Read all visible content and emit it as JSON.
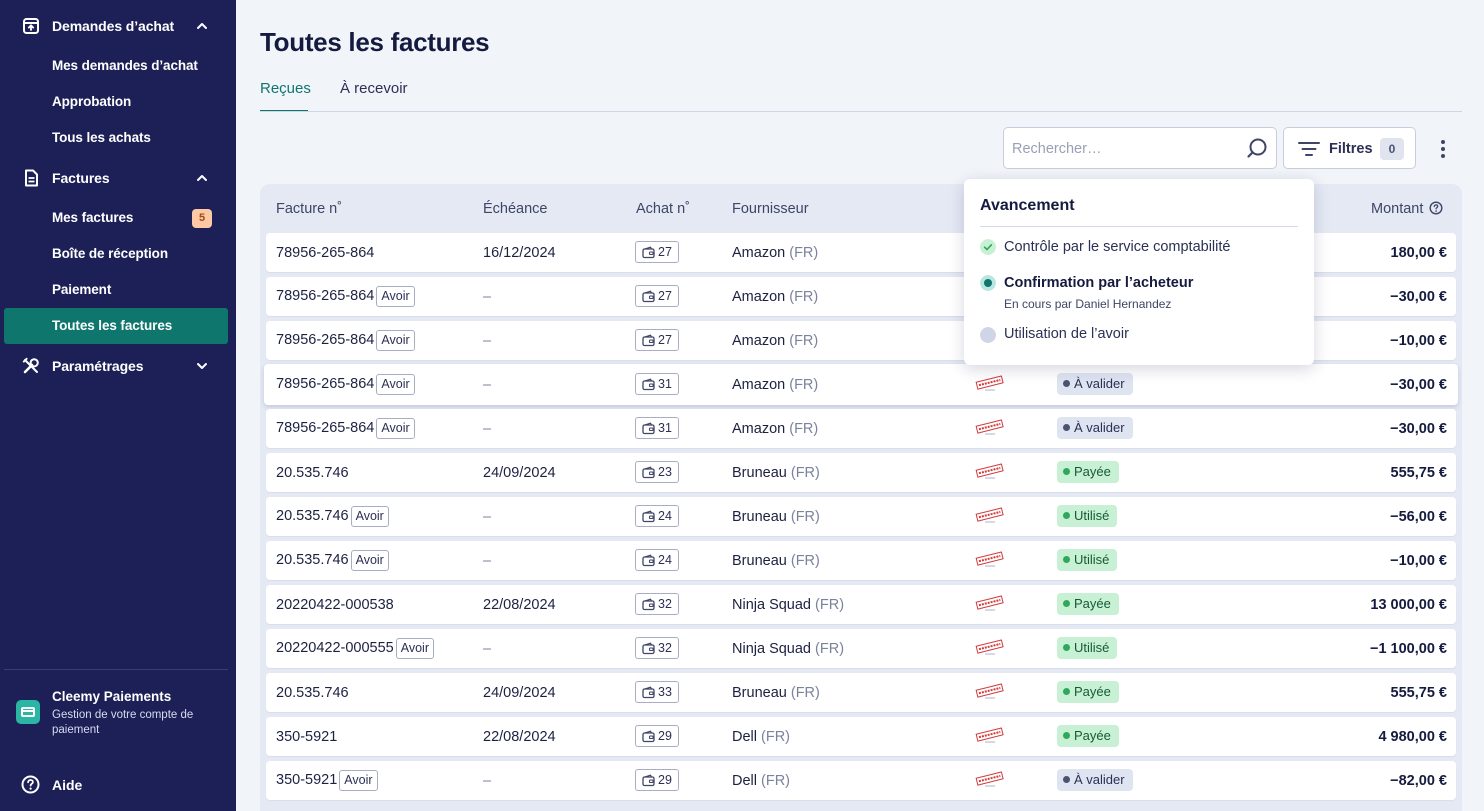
{
  "sidebar": {
    "groups": [
      {
        "label": "Demandes d’achat",
        "icon": "upload-box-icon",
        "expanded": true,
        "items": [
          {
            "label": "Mes demandes d’achat"
          },
          {
            "label": "Approbation"
          },
          {
            "label": "Tous les achats"
          }
        ]
      },
      {
        "label": "Factures",
        "icon": "document-icon",
        "expanded": true,
        "items": [
          {
            "label": "Mes factures",
            "badge": "5"
          },
          {
            "label": "Boîte de réception"
          },
          {
            "label": "Paiement"
          },
          {
            "label": "Toutes les factures",
            "active": true
          }
        ]
      },
      {
        "label": "Paramétrages",
        "icon": "tools-icon",
        "expanded": false,
        "items": []
      }
    ],
    "footer": {
      "account_title": "Cleemy Paiements",
      "account_subtitle": "Gestion de votre compte de paiement",
      "help_label": "Aide"
    }
  },
  "main": {
    "title": "Toutes les factures",
    "tabs": [
      {
        "label": "Reçues",
        "active": true
      },
      {
        "label": "À recevoir",
        "active": false
      }
    ],
    "search": {
      "placeholder": "Rechercher…",
      "value": ""
    },
    "filters": {
      "label": "Filtres",
      "count": "0"
    }
  },
  "table": {
    "columns": {
      "invoice": "Facture n˚",
      "due": "Échéance",
      "purchase": "Achat n˚",
      "supplier": "Fournisseur",
      "amount": "Montant"
    },
    "avoir_label": "Avoir",
    "rows": [
      {
        "invoice": "78956-265-864",
        "avoir": false,
        "due": "16/12/2024",
        "purchase": "27",
        "supplier": "Amazon",
        "country": "(FR)",
        "status": "",
        "status_type": "",
        "amount": "180,00 €"
      },
      {
        "invoice": "78956-265-864",
        "avoir": true,
        "due": "–",
        "purchase": "27",
        "supplier": "Amazon",
        "country": "(FR)",
        "status": "",
        "status_type": "",
        "amount": "−30,00 €"
      },
      {
        "invoice": "78956-265-864",
        "avoir": true,
        "due": "–",
        "purchase": "27",
        "supplier": "Amazon",
        "country": "(FR)",
        "status": "",
        "status_type": "",
        "amount": "−10,00 €"
      },
      {
        "invoice": "78956-265-864",
        "avoir": true,
        "due": "–",
        "purchase": "31",
        "supplier": "Amazon",
        "country": "(FR)",
        "status": "À valider",
        "status_type": "pending",
        "amount": "−30,00 €"
      },
      {
        "invoice": "78956-265-864",
        "avoir": true,
        "due": "–",
        "purchase": "31",
        "supplier": "Amazon",
        "country": "(FR)",
        "status": "À valider",
        "status_type": "pending",
        "amount": "−30,00 €"
      },
      {
        "invoice": "20.535.746",
        "avoir": false,
        "due": "24/09/2024",
        "purchase": "23",
        "supplier": "Bruneau",
        "country": "(FR)",
        "status": "Payée",
        "status_type": "paid",
        "amount": "555,75 €"
      },
      {
        "invoice": "20.535.746",
        "avoir": true,
        "due": "–",
        "purchase": "24",
        "supplier": "Bruneau",
        "country": "(FR)",
        "status": "Utilisé",
        "status_type": "paid",
        "amount": "−56,00 €"
      },
      {
        "invoice": "20.535.746",
        "avoir": true,
        "due": "–",
        "purchase": "24",
        "supplier": "Bruneau",
        "country": "(FR)",
        "status": "Utilisé",
        "status_type": "paid",
        "amount": "−10,00 €"
      },
      {
        "invoice": "20220422-000538",
        "avoir": false,
        "due": "22/08/2024",
        "purchase": "32",
        "supplier": "Ninja Squad",
        "country": "(FR)",
        "status": "Payée",
        "status_type": "paid",
        "amount": "13 000,00 €"
      },
      {
        "invoice": "20220422-000555",
        "avoir": true,
        "due": "–",
        "purchase": "32",
        "supplier": "Ninja Squad",
        "country": "(FR)",
        "status": "Utilisé",
        "status_type": "paid",
        "amount": "−1 100,00 €"
      },
      {
        "invoice": "20.535.746",
        "avoir": false,
        "due": "24/09/2024",
        "purchase": "33",
        "supplier": "Bruneau",
        "country": "(FR)",
        "status": "Payée",
        "status_type": "paid",
        "amount": "555,75 €"
      },
      {
        "invoice": "350-5921",
        "avoir": false,
        "due": "22/08/2024",
        "purchase": "29",
        "supplier": "Dell",
        "country": "(FR)",
        "status": "Payée",
        "status_type": "paid",
        "amount": "4 980,00 €"
      },
      {
        "invoice": "350-5921",
        "avoir": true,
        "due": "–",
        "purchase": "29",
        "supplier": "Dell",
        "country": "(FR)",
        "status": "À valider",
        "status_type": "pending",
        "amount": "−82,00 €"
      }
    ]
  },
  "popover": {
    "title": "Avancement",
    "steps": [
      {
        "label": "Contrôle par le service comptabilité",
        "state": "done"
      },
      {
        "label": "Confirmation par l’acheteur",
        "state": "current",
        "sublabel": "En cours par Daniel Hernandez"
      },
      {
        "label": "Utilisation de l’avoir",
        "state": "todo"
      }
    ]
  },
  "colors": {
    "sidebar_bg": "#1c2056",
    "accent": "#0f766e",
    "badge_bg": "#fcc8a5",
    "paid_bg": "#c8f0d4",
    "pending_bg": "#dfe4f1"
  }
}
